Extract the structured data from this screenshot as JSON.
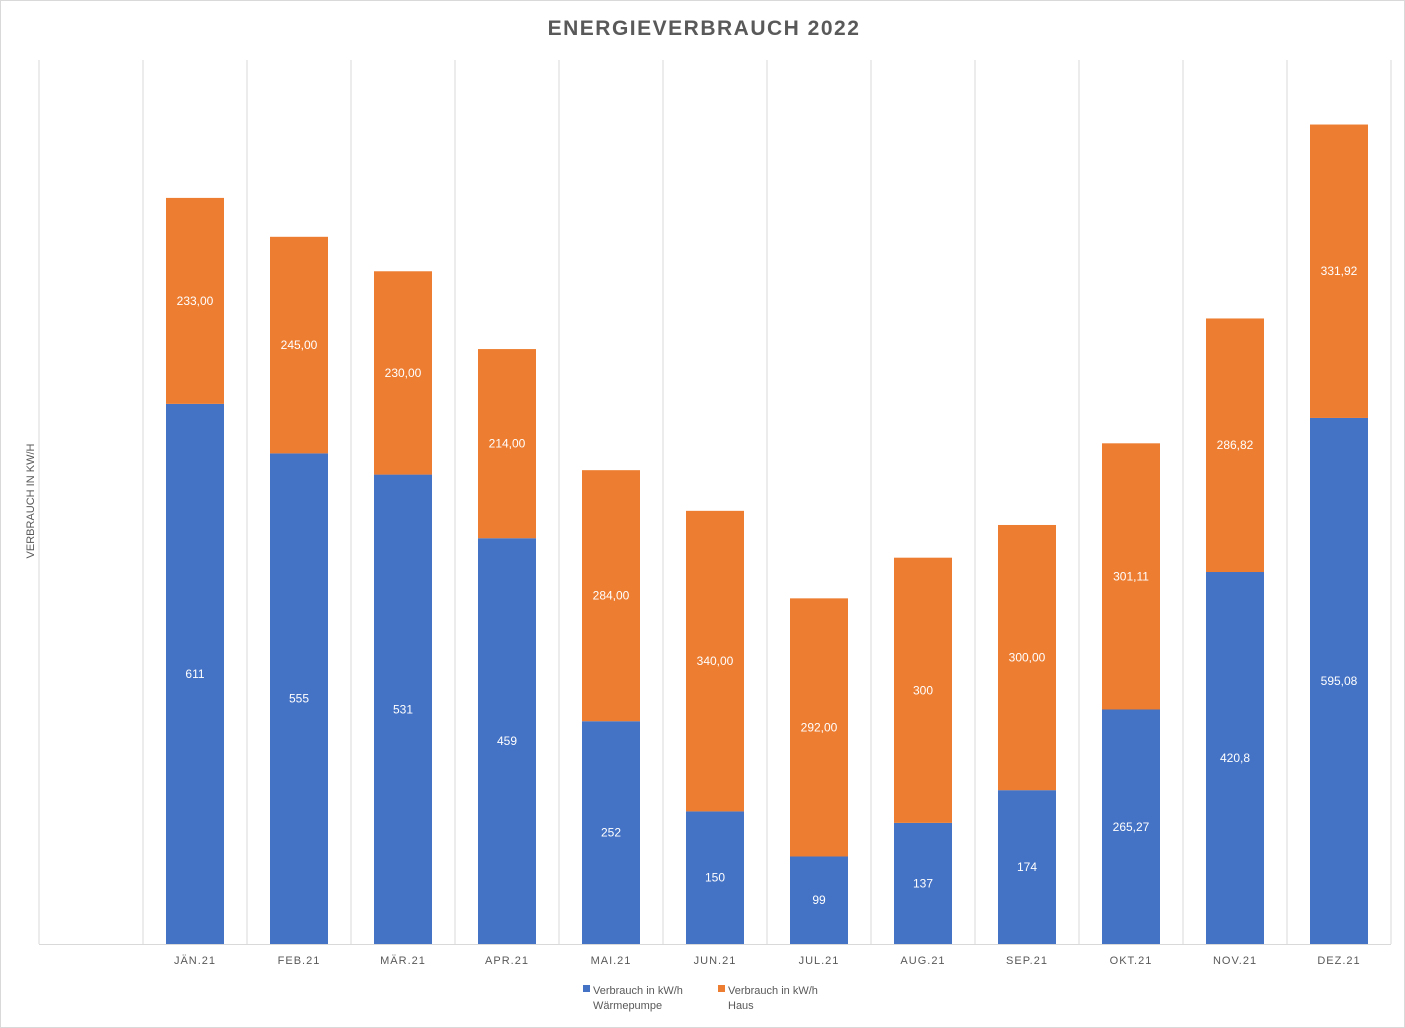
{
  "chart_data": {
    "type": "bar",
    "stacked": true,
    "title": "ENERGIEVERBRAUCH 2022",
    "ylabel": "VERBRAUCH IN KW/H",
    "xlabel": "",
    "categories": [
      "JÄN.21",
      "FEB.21",
      "MÄR.21",
      "APR.21",
      "MAI.21",
      "JUN.21",
      "JUL.21",
      "AUG.21",
      "SEP.21",
      "OKT.21",
      "NOV.21",
      "DEZ.21"
    ],
    "ylim": [
      0,
      1000
    ],
    "grid": "vertical",
    "legend_position": "bottom",
    "series": [
      {
        "name_lines": [
          "Verbrauch in kW/h",
          "Wärmepumpe"
        ],
        "color": "#4472C4",
        "values": [
          611,
          555,
          531,
          459,
          252,
          150,
          99,
          137,
          174,
          265.27,
          420.8,
          595.08
        ],
        "labels": [
          "611",
          "555",
          "531",
          "459",
          "252",
          "150",
          "99",
          "137",
          "174",
          "265,27",
          "420,8",
          "595,08"
        ]
      },
      {
        "name_lines": [
          "Verbrauch in kW/h",
          "Haus"
        ],
        "color": "#ED7D31",
        "values": [
          233,
          245,
          230,
          214,
          284,
          340,
          292,
          300,
          300,
          301.11,
          286.82,
          331.92
        ],
        "labels": [
          "233,00",
          "245,00",
          "230,00",
          "214,00",
          "284,00",
          "340,00",
          "292,00",
          "300",
          "300,00",
          "301,11",
          "286,82",
          "331,92"
        ]
      }
    ],
    "gridline_color": "#d9d9d9",
    "text_color": "#595959"
  }
}
